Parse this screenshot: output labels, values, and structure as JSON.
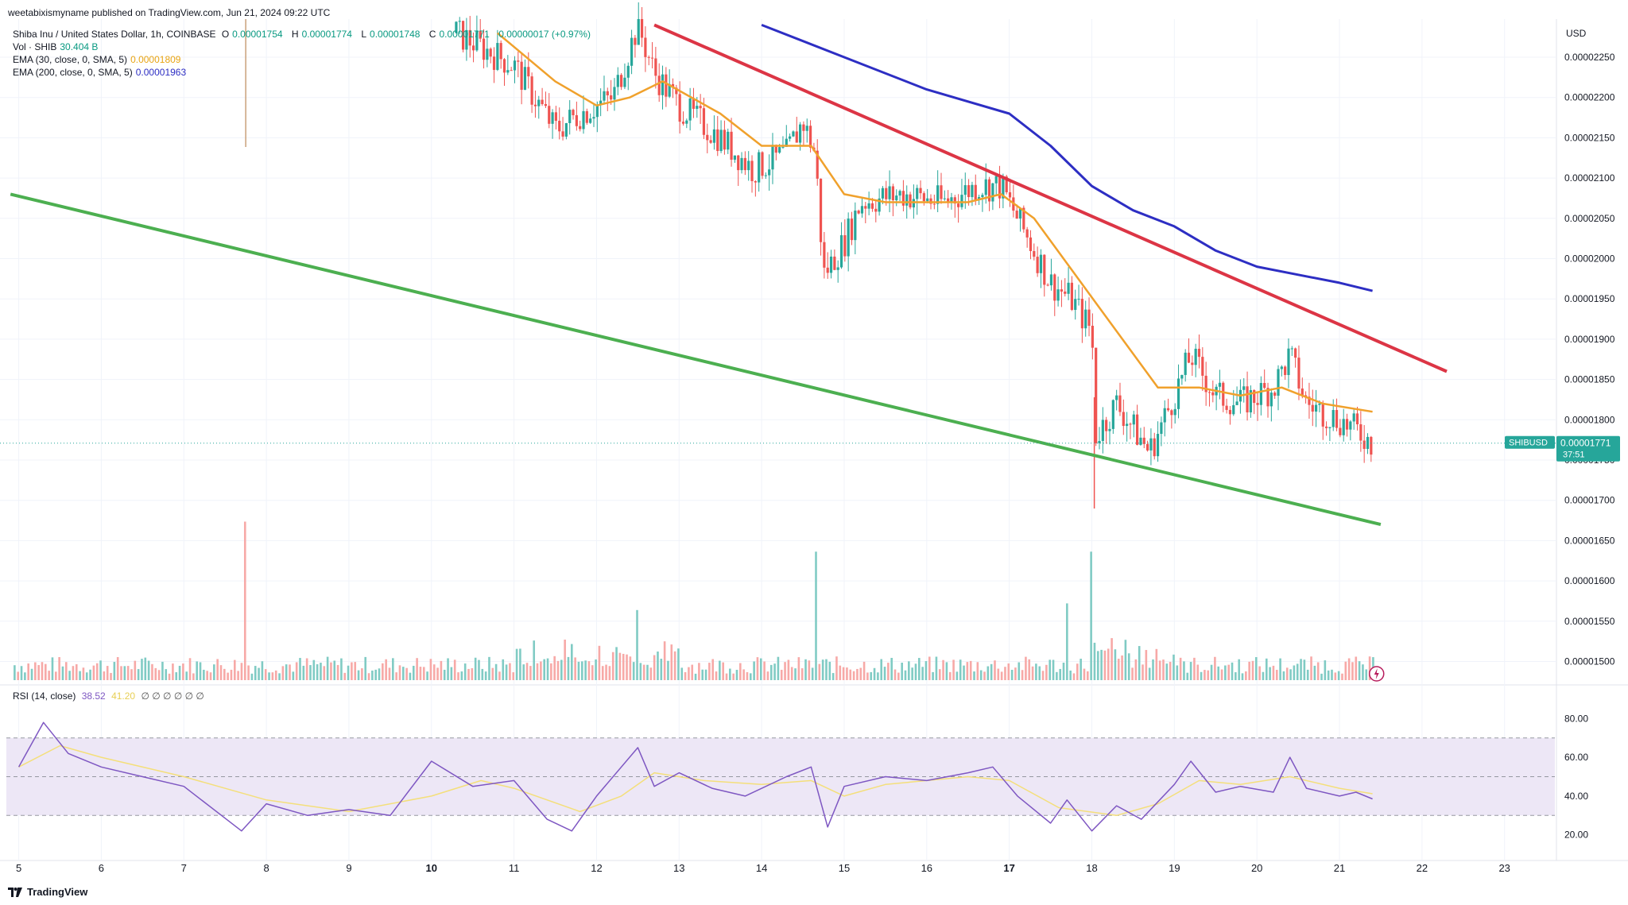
{
  "header": {
    "published": "weetabixismyname published on TradingView.com, Jun 21, 2024 09:22 UTC"
  },
  "legend": {
    "symbol": "Shiba Inu / United States Dollar, 1h, COINBASE",
    "o_label": "O",
    "o_value": "0.00001754",
    "h_label": "H",
    "h_value": "0.00001774",
    "l_label": "L",
    "l_value": "0.00001748",
    "c_label": "C",
    "c_value": "0.00001771",
    "change": "0.00000017 (+0.97%)",
    "vol_label": "Vol · SHIB",
    "vol_value": "30.404 B",
    "ema30_label": "EMA (30, close, 0, SMA, 5)",
    "ema30_value": "0.00001809",
    "ema200_label": "EMA (200, close, 0, SMA, 5)",
    "ema200_value": "0.00001963",
    "rsi_label": "RSI (14, close)",
    "rsi_value": "38.52",
    "rsi_ma_value": "41.20",
    "rsi_extra": "∅ ∅ ∅ ∅ ∅ ∅"
  },
  "price_axis": {
    "currency": "USD",
    "ticks": [
      "0.00002250",
      "0.00002200",
      "0.00002150",
      "0.00002100",
      "0.00002050",
      "0.00002000",
      "0.00001950",
      "0.00001900",
      "0.00001850",
      "0.00001800",
      "0.00001750",
      "0.00001700",
      "0.00001650",
      "0.00001600",
      "0.00001550",
      "0.00001500"
    ],
    "last_label": "SHIBUSD",
    "last_price": "0.00001771",
    "countdown": "37:51"
  },
  "rsi_axis": {
    "ticks": [
      "80.00",
      "60.00",
      "40.00",
      "20.00"
    ]
  },
  "time_axis": {
    "labels": [
      "5",
      "6",
      "7",
      "8",
      "9",
      "10",
      "11",
      "12",
      "13",
      "14",
      "15",
      "16",
      "17",
      "18",
      "19",
      "20",
      "21",
      "22",
      "23"
    ],
    "bold": [
      "10",
      "17"
    ]
  },
  "colors": {
    "up": "#26a69a",
    "down": "#ef5350",
    "ema30": "#f0a12c",
    "ema200": "#2d2ec3",
    "resistance": "#dc3545",
    "support": "#4caf50",
    "rsi": "#7e57c2",
    "rsi_ma": "#f4df7a",
    "rsi_band": "#ede7f6"
  },
  "footer": {
    "brand": "TradingView"
  },
  "chart_data": {
    "type": "candlestick",
    "title": "Shiba Inu / United States Dollar, 1h, COINBASE",
    "x_unit": "day of June 2024",
    "ylim": [
      1.47e-05,
      2.29e-05
    ],
    "price_path": [
      [
        5.3,
        2.31e-05
      ],
      [
        10.3,
        2.28e-05
      ],
      [
        11.0,
        2.24e-05
      ],
      [
        11.5,
        2.16e-05
      ],
      [
        11.8,
        2.18e-05
      ],
      [
        12.2,
        2.2e-05
      ],
      [
        12.5,
        2.29e-05
      ],
      [
        12.7,
        2.23e-05
      ],
      [
        13.0,
        2.19e-05
      ],
      [
        13.5,
        2.15e-05
      ],
      [
        13.9,
        2.11e-05
      ],
      [
        14.3,
        2.13e-05
      ],
      [
        14.5,
        2.17e-05
      ],
      [
        14.65,
        2.13e-05
      ],
      [
        14.75,
        1.98e-05
      ],
      [
        15.0,
        2.02e-05
      ],
      [
        15.2,
        2.07e-05
      ],
      [
        15.7,
        2.08e-05
      ],
      [
        16.2,
        2.07e-05
      ],
      [
        16.6,
        2.09e-05
      ],
      [
        16.9,
        2.09e-05
      ],
      [
        17.2,
        2.03e-05
      ],
      [
        17.5,
        1.97e-05
      ],
      [
        17.75,
        1.95e-05
      ],
      [
        18.0,
        1.91e-05
      ],
      [
        18.05,
        1.78e-05
      ],
      [
        18.3,
        1.82e-05
      ],
      [
        18.5,
        1.79e-05
      ],
      [
        18.7,
        1.76e-05
      ],
      [
        19.0,
        1.83e-05
      ],
      [
        19.2,
        1.88e-05
      ],
      [
        19.5,
        1.83e-05
      ],
      [
        19.8,
        1.82e-05
      ],
      [
        20.2,
        1.84e-05
      ],
      [
        20.4,
        1.88e-05
      ],
      [
        20.6,
        1.82e-05
      ],
      [
        21.0,
        1.8e-05
      ],
      [
        21.3,
        1.78e-05
      ],
      [
        21.4,
        1.77e-05
      ]
    ],
    "ema30_path": [
      [
        10.8,
        2.28e-05
      ],
      [
        11.5,
        2.22e-05
      ],
      [
        12.0,
        2.19e-05
      ],
      [
        12.4,
        2.2e-05
      ],
      [
        12.8,
        2.22e-05
      ],
      [
        13.5,
        2.18e-05
      ],
      [
        14.0,
        2.14e-05
      ],
      [
        14.6,
        2.14e-05
      ],
      [
        15.0,
        2.08e-05
      ],
      [
        15.5,
        2.07e-05
      ],
      [
        16.0,
        2.07e-05
      ],
      [
        16.5,
        2.07e-05
      ],
      [
        16.9,
        2.08e-05
      ],
      [
        17.3,
        2.05e-05
      ],
      [
        17.8,
        1.98e-05
      ],
      [
        18.3,
        1.91e-05
      ],
      [
        18.8,
        1.84e-05
      ],
      [
        19.3,
        1.84e-05
      ],
      [
        19.8,
        1.83e-05
      ],
      [
        20.3,
        1.84e-05
      ],
      [
        20.8,
        1.82e-05
      ],
      [
        21.4,
        1.81e-05
      ]
    ],
    "ema200_path": [
      [
        14.0,
        2.29e-05
      ],
      [
        15.0,
        2.25e-05
      ],
      [
        16.0,
        2.21e-05
      ],
      [
        17.0,
        2.18e-05
      ],
      [
        17.5,
        2.14e-05
      ],
      [
        18.0,
        2.09e-05
      ],
      [
        18.5,
        2.06e-05
      ],
      [
        19.0,
        2.04e-05
      ],
      [
        19.5,
        2.01e-05
      ],
      [
        20.0,
        1.99e-05
      ],
      [
        20.5,
        1.98e-05
      ],
      [
        21.0,
        1.97e-05
      ],
      [
        21.4,
        1.96e-05
      ]
    ],
    "resistance_line": [
      [
        12.7,
        2.29e-05
      ],
      [
        22.3,
        1.86e-05
      ]
    ],
    "support_line": [
      [
        4.9,
        2.08e-05
      ],
      [
        21.5,
        1.67e-05
      ]
    ],
    "volume_spikes": [
      [
        7.75,
        0.95
      ],
      [
        14.65,
        0.77
      ],
      [
        18.0,
        0.77
      ],
      [
        12.5,
        0.42
      ],
      [
        17.7,
        0.46
      ]
    ],
    "rsi_path": [
      [
        5.0,
        55
      ],
      [
        5.3,
        78
      ],
      [
        5.6,
        62
      ],
      [
        6.0,
        55
      ],
      [
        6.5,
        50
      ],
      [
        7.0,
        45
      ],
      [
        7.7,
        22
      ],
      [
        8.0,
        36
      ],
      [
        8.5,
        30
      ],
      [
        9.0,
        33
      ],
      [
        9.5,
        30
      ],
      [
        10.0,
        58
      ],
      [
        10.5,
        45
      ],
      [
        11.0,
        48
      ],
      [
        11.4,
        28
      ],
      [
        11.7,
        22
      ],
      [
        12.0,
        40
      ],
      [
        12.5,
        65
      ],
      [
        12.7,
        45
      ],
      [
        13.0,
        52
      ],
      [
        13.4,
        44
      ],
      [
        13.8,
        40
      ],
      [
        14.3,
        50
      ],
      [
        14.6,
        55
      ],
      [
        14.8,
        24
      ],
      [
        15.0,
        45
      ],
      [
        15.5,
        50
      ],
      [
        16.0,
        48
      ],
      [
        16.5,
        52
      ],
      [
        16.8,
        55
      ],
      [
        17.1,
        40
      ],
      [
        17.5,
        26
      ],
      [
        17.7,
        38
      ],
      [
        18.0,
        22
      ],
      [
        18.3,
        35
      ],
      [
        18.6,
        28
      ],
      [
        19.0,
        46
      ],
      [
        19.2,
        58
      ],
      [
        19.5,
        42
      ],
      [
        19.8,
        45
      ],
      [
        20.2,
        42
      ],
      [
        20.4,
        60
      ],
      [
        20.6,
        44
      ],
      [
        21.0,
        40
      ],
      [
        21.2,
        42
      ],
      [
        21.4,
        38.5
      ]
    ],
    "rsi_ma_path": [
      [
        5.0,
        55
      ],
      [
        5.5,
        66
      ],
      [
        6.0,
        60
      ],
      [
        7.0,
        50
      ],
      [
        8.0,
        38
      ],
      [
        9.0,
        32
      ],
      [
        10.0,
        40
      ],
      [
        10.6,
        48
      ],
      [
        11.0,
        44
      ],
      [
        11.8,
        32
      ],
      [
        12.3,
        40
      ],
      [
        12.7,
        52
      ],
      [
        13.3,
        48
      ],
      [
        14.0,
        46
      ],
      [
        14.6,
        48
      ],
      [
        15.0,
        40
      ],
      [
        15.5,
        46
      ],
      [
        16.5,
        50
      ],
      [
        17.0,
        48
      ],
      [
        17.6,
        34
      ],
      [
        18.3,
        30
      ],
      [
        18.8,
        36
      ],
      [
        19.3,
        48
      ],
      [
        19.8,
        46
      ],
      [
        20.4,
        50
      ],
      [
        21.0,
        44
      ],
      [
        21.4,
        41.2
      ]
    ],
    "rsi_ylim": [
      10,
      90
    ],
    "rsi_band": [
      30,
      70
    ]
  }
}
